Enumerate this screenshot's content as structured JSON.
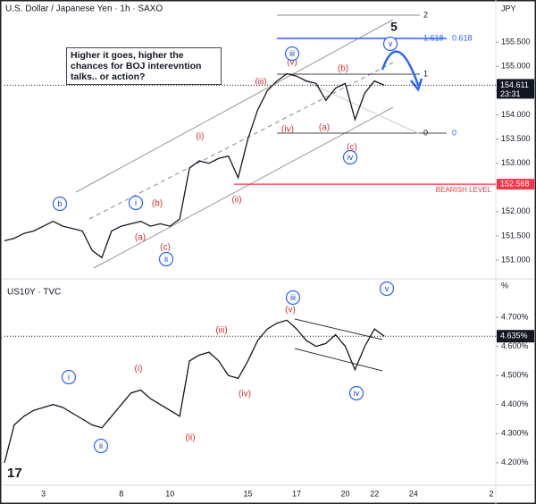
{
  "chart_data": [
    {
      "type": "line",
      "title": "U.S. Dollar / Japanese Yen · 1h · SAXO",
      "unit_label": "JPY",
      "color": "#131722",
      "values": [
        151.4,
        151.45,
        151.55,
        151.6,
        151.7,
        151.8,
        151.7,
        151.65,
        151.6,
        151.2,
        151.05,
        151.6,
        151.7,
        151.75,
        151.8,
        151.7,
        151.75,
        151.7,
        151.85,
        152.9,
        153.05,
        153.0,
        153.1,
        153.15,
        152.7,
        153.5,
        154.1,
        154.5,
        154.7,
        154.85,
        154.8,
        154.7,
        154.65,
        154.3,
        154.55,
        154.65,
        153.9,
        154.45,
        154.7,
        154.611,
        null,
        null,
        null,
        null,
        null,
        null,
        null,
        null,
        null,
        null,
        null
      ],
      "ylim": [
        150.65,
        156.28
      ],
      "yticks": [
        {
          "value": 151,
          "label": "151.000"
        },
        {
          "value": 151.5,
          "label": "151.500"
        },
        {
          "value": 152,
          "label": "152.000"
        },
        {
          "value": 152.5,
          "label": "152.500"
        },
        {
          "value": 153,
          "label": "153.000"
        },
        {
          "value": 153.5,
          "label": "153.500"
        },
        {
          "value": 154,
          "label": "154.000"
        },
        {
          "value": 154.5,
          "label": "154.500"
        },
        {
          "value": 155,
          "label": "155.000"
        },
        {
          "value": 155.5,
          "label": "155.500"
        }
      ],
      "last_value": 154.611,
      "countdown": "23:31",
      "bearish_level": {
        "name": "BEARISH LEVEL",
        "value": 152.568,
        "color": "#f23645"
      },
      "note": "Higher it goes, higher the chances for BOJ interevntion talks.. or action?",
      "fib_labels": [
        "2",
        "1.618",
        "0.618",
        "1",
        "0",
        "0"
      ],
      "wave_count": "5",
      "wave_labels_red": [
        "(v)",
        "(b)",
        "(iii)",
        "(iv)",
        "(a)",
        "(c)",
        "(i)",
        "(ii)",
        "(b)",
        "(a)",
        "(c)"
      ],
      "wave_labels_circled": [
        "iii",
        "v",
        "iv",
        "b",
        "i",
        "ii"
      ]
    },
    {
      "type": "line",
      "title": "US10Y · TVC",
      "unit_label": "%",
      "color": "#131722",
      "categories": [
        null,
        null,
        null,
        null,
        "3",
        null,
        null,
        null,
        null,
        null,
        null,
        null,
        "8",
        null,
        null,
        null,
        null,
        "10",
        null,
        null,
        null,
        null,
        null,
        null,
        null,
        "15",
        null,
        null,
        null,
        null,
        "17",
        null,
        null,
        null,
        null,
        "20",
        null,
        null,
        "22",
        null,
        null,
        null,
        "24",
        null,
        null,
        null,
        null,
        null,
        null,
        null,
        "2"
      ],
      "values": [
        4.2,
        4.33,
        4.36,
        4.38,
        4.39,
        4.4,
        4.39,
        4.37,
        4.35,
        4.33,
        4.32,
        4.36,
        4.4,
        4.44,
        4.45,
        4.42,
        4.4,
        4.38,
        4.36,
        4.55,
        4.57,
        4.58,
        4.55,
        4.5,
        4.49,
        4.55,
        4.62,
        4.66,
        4.68,
        4.69,
        4.66,
        4.62,
        4.6,
        4.61,
        4.64,
        4.6,
        4.52,
        4.6,
        4.66,
        4.635,
        null,
        null,
        null,
        null,
        null,
        null,
        null,
        null,
        null,
        null,
        null
      ],
      "ylim": [
        4.132,
        4.823
      ],
      "yticks": [
        {
          "value": 4.2,
          "label": "4.200%"
        },
        {
          "value": 4.3,
          "label": "4.300%"
        },
        {
          "value": 4.4,
          "label": "4.400%"
        },
        {
          "value": 4.5,
          "label": "4.500%"
        },
        {
          "value": 4.6,
          "label": "4.600%"
        },
        {
          "value": 4.7,
          "label": "4.700%"
        }
      ],
      "last_value": {
        "value": 4.635,
        "label": "4.635%"
      },
      "wave_labels_red": [
        "(v)",
        "(iii)",
        "(i)",
        "(iv)",
        "(ii)"
      ],
      "wave_labels_circled": [
        "iii",
        "v",
        "i",
        "ii",
        "iv"
      ]
    }
  ]
}
